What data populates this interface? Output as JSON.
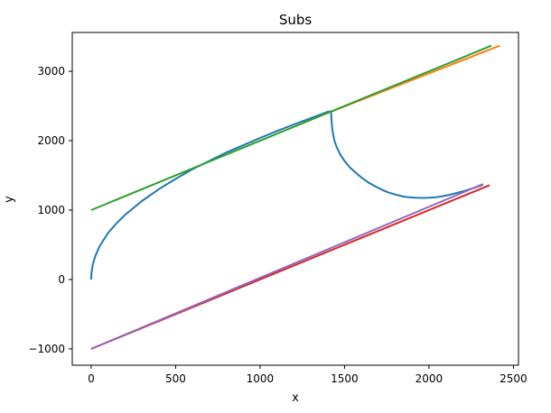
{
  "chart_data": {
    "type": "line",
    "title": "Subs",
    "xlabel": "x",
    "ylabel": "y",
    "xlim": [
      -112,
      2530
    ],
    "ylim": [
      -1235,
      3560
    ],
    "xticks": [
      0,
      500,
      1000,
      1500,
      2000,
      2500
    ],
    "yticks": [
      -1000,
      0,
      1000,
      2000,
      3000
    ],
    "xtick_labels": [
      "0",
      "500",
      "1000",
      "1500",
      "2000",
      "2500"
    ],
    "ytick_labels": [
      "−1000",
      "0",
      "1000",
      "2000",
      "3000"
    ],
    "grid": false,
    "legend": "none",
    "series": [
      {
        "color": "#1f77b4",
        "x": [
          0,
          2,
          10,
          25,
          50,
          100,
          150,
          200,
          300,
          400,
          500,
          600,
          700,
          800,
          900,
          1000,
          1100,
          1200,
          1300,
          1400,
          1420,
          1423,
          1426,
          1432,
          1440,
          1455,
          1475,
          1500,
          1530,
          1565,
          1600,
          1640,
          1680,
          1720,
          1760,
          1800,
          1840,
          1880,
          1920,
          1960,
          2000,
          2040,
          2080,
          2120,
          2160,
          2200,
          2240,
          2280,
          2320
        ],
        "y": [
          0,
          100,
          220,
          340,
          480,
          670,
          810,
          930,
          1130,
          1300,
          1450,
          1590,
          1710,
          1830,
          1935,
          2040,
          2140,
          2235,
          2325,
          2415,
          2425,
          2300,
          2200,
          2100,
          2000,
          1900,
          1800,
          1710,
          1620,
          1540,
          1470,
          1400,
          1345,
          1295,
          1255,
          1225,
          1200,
          1185,
          1178,
          1176,
          1178,
          1185,
          1200,
          1220,
          1245,
          1270,
          1300,
          1330,
          1365
        ]
      },
      {
        "color": "#ff7f0e",
        "x": [
          1400,
          2420
        ],
        "y": [
          2400,
          3370
        ]
      },
      {
        "color": "#2ca02c",
        "x": [
          0,
          2370
        ],
        "y": [
          1000,
          3370
        ]
      },
      {
        "color": "#d62728",
        "x": [
          0,
          2360
        ],
        "y": [
          -1000,
          1360
        ]
      },
      {
        "color": "#9467bd",
        "x": [
          0,
          2320
        ],
        "y": [
          -1000,
          1375
        ]
      }
    ]
  }
}
